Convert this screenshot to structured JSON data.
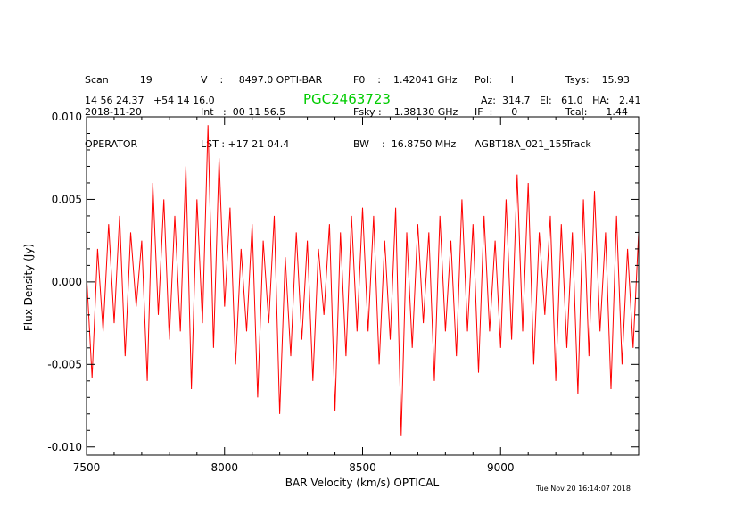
{
  "header": {
    "col1": [
      "Scan          19",
      "2018-11-20",
      "OPERATOR"
    ],
    "col2": [
      "V    :     8497.0 OPTI-BAR",
      "Int   :  00 11 56.5",
      "LST : +17 21 04.4"
    ],
    "col3": [
      "F0    :    1.42041 GHz",
      "Fsky :    1.38130 GHz",
      "BW    :  16.8750 MHz"
    ],
    "col4": [
      "Pol:      I",
      "IF  :      0",
      "AGBT18A_021_155"
    ],
    "col5": [
      "Tsys:    15.93",
      "Tcal:      1.44",
      "Track"
    ],
    "coords": "14 56 24.37   +54 14 16.0",
    "source": "PGC2463723",
    "azel": "Az:  314.7   El:   61.0   HA:   2.41"
  },
  "timestamp": "Tue Nov 20 16:14:07 2018",
  "colors": {
    "line": "#ff0000",
    "source": "#00cc00",
    "axis": "#000000"
  },
  "chart_data": {
    "type": "line",
    "xlabel": "BAR Velocity (km/s) OPTICAL",
    "ylabel": "Flux Density (Jy)",
    "xlim": [
      7500,
      9500
    ],
    "ylim": [
      -0.0105,
      0.01
    ],
    "xticks": [
      7500,
      8000,
      8500,
      9000
    ],
    "xtick_labels": [
      "7500",
      "8000",
      "8500",
      "9000"
    ],
    "yticks": [
      -0.01,
      -0.005,
      0.0,
      0.005,
      0.01
    ],
    "ytick_labels": [
      "-0.010",
      "-0.005",
      "0.000",
      "0.005",
      "0.010"
    ],
    "series": [
      {
        "x": [
          7500,
          7520,
          7540,
          7560,
          7580,
          7600,
          7620,
          7640,
          7660,
          7680,
          7700,
          7720,
          7740,
          7760,
          7780,
          7800,
          7820,
          7840,
          7860,
          7880,
          7900,
          7920,
          7940,
          7960,
          7980,
          8000,
          8020,
          8040,
          8060,
          8080,
          8100,
          8120,
          8140,
          8160,
          8180,
          8200,
          8220,
          8240,
          8260,
          8280,
          8300,
          8320,
          8340,
          8360,
          8380,
          8400,
          8420,
          8440,
          8460,
          8480,
          8500,
          8520,
          8540,
          8560,
          8580,
          8600,
          8620,
          8640,
          8660,
          8680,
          8700,
          8720,
          8740,
          8760,
          8780,
          8800,
          8820,
          8840,
          8860,
          8880,
          8900,
          8920,
          8940,
          8960,
          8980,
          9000,
          9020,
          9040,
          9060,
          9080,
          9100,
          9120,
          9140,
          9160,
          9180,
          9200,
          9220,
          9240,
          9260,
          9280,
          9300,
          9320,
          9340,
          9360,
          9380,
          9400,
          9420,
          9440,
          9460,
          9480,
          9500
        ],
        "y": [
          0.0005,
          -0.0058,
          0.002,
          -0.003,
          0.0035,
          -0.0025,
          0.004,
          -0.0045,
          0.003,
          -0.0015,
          0.0025,
          -0.006,
          0.006,
          -0.002,
          0.005,
          -0.0035,
          0.004,
          -0.003,
          0.007,
          -0.0065,
          0.005,
          -0.0025,
          0.0095,
          -0.004,
          0.0075,
          -0.0015,
          0.0045,
          -0.005,
          0.002,
          -0.003,
          0.0035,
          -0.007,
          0.0025,
          -0.0025,
          0.004,
          -0.008,
          0.0015,
          -0.0045,
          0.003,
          -0.0035,
          0.0025,
          -0.006,
          0.002,
          -0.002,
          0.0035,
          -0.0078,
          0.003,
          -0.0045,
          0.004,
          -0.003,
          0.0045,
          -0.003,
          0.004,
          -0.005,
          0.0025,
          -0.0035,
          0.0045,
          -0.0093,
          0.003,
          -0.004,
          0.0035,
          -0.0025,
          0.003,
          -0.006,
          0.004,
          -0.003,
          0.0025,
          -0.0045,
          0.005,
          -0.003,
          0.0035,
          -0.0055,
          0.004,
          -0.003,
          0.0025,
          -0.004,
          0.005,
          -0.0035,
          0.0065,
          -0.003,
          0.006,
          -0.005,
          0.003,
          -0.002,
          0.004,
          -0.006,
          0.0035,
          -0.004,
          0.003,
          -0.0068,
          0.005,
          -0.0045,
          0.0055,
          -0.003,
          0.003,
          -0.0065,
          0.004,
          -0.005,
          0.002,
          -0.004,
          0.003
        ]
      }
    ],
    "grid": false,
    "legend": "none"
  }
}
